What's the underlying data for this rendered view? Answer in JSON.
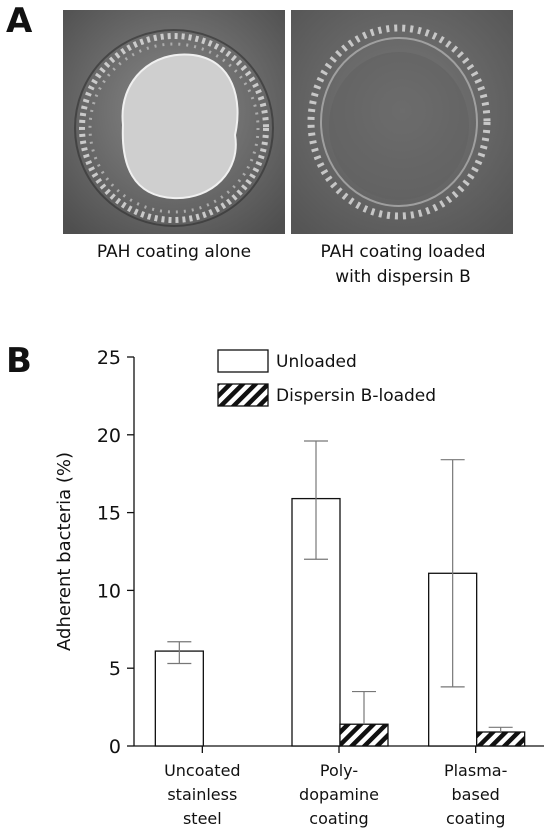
{
  "panel_a": {
    "letter": "A",
    "images": [
      {
        "caption_lines": [
          "PAH coating alone"
        ]
      },
      {
        "caption_lines": [
          "PAH coating loaded",
          "with dispersin B"
        ]
      }
    ]
  },
  "panel_b": {
    "letter": "B"
  },
  "chart_data": {
    "type": "bar",
    "categories": [
      [
        "Uncoated",
        "stainless",
        "steel"
      ],
      [
        "Poly-",
        "dopamine",
        "coating"
      ],
      [
        "Plasma-",
        "based",
        "coating"
      ]
    ],
    "ylabel": "Adherent bacteria (%)",
    "ylim": [
      0,
      25
    ],
    "yticks": [
      0,
      5,
      10,
      15,
      20,
      25
    ],
    "grid": false,
    "legend_position": "top",
    "series": [
      {
        "name": "Unloaded",
        "fill": "white",
        "values": [
          6.1,
          15.9,
          11.1
        ],
        "error_low": [
          5.3,
          12.0,
          3.8
        ],
        "error_high": [
          6.7,
          19.6,
          18.4
        ]
      },
      {
        "name": "Dispersin B-loaded",
        "fill": "hatched",
        "values": [
          null,
          1.4,
          0.9
        ],
        "error_low": [
          null,
          null,
          null
        ],
        "error_high": [
          null,
          3.5,
          1.2
        ]
      }
    ]
  }
}
